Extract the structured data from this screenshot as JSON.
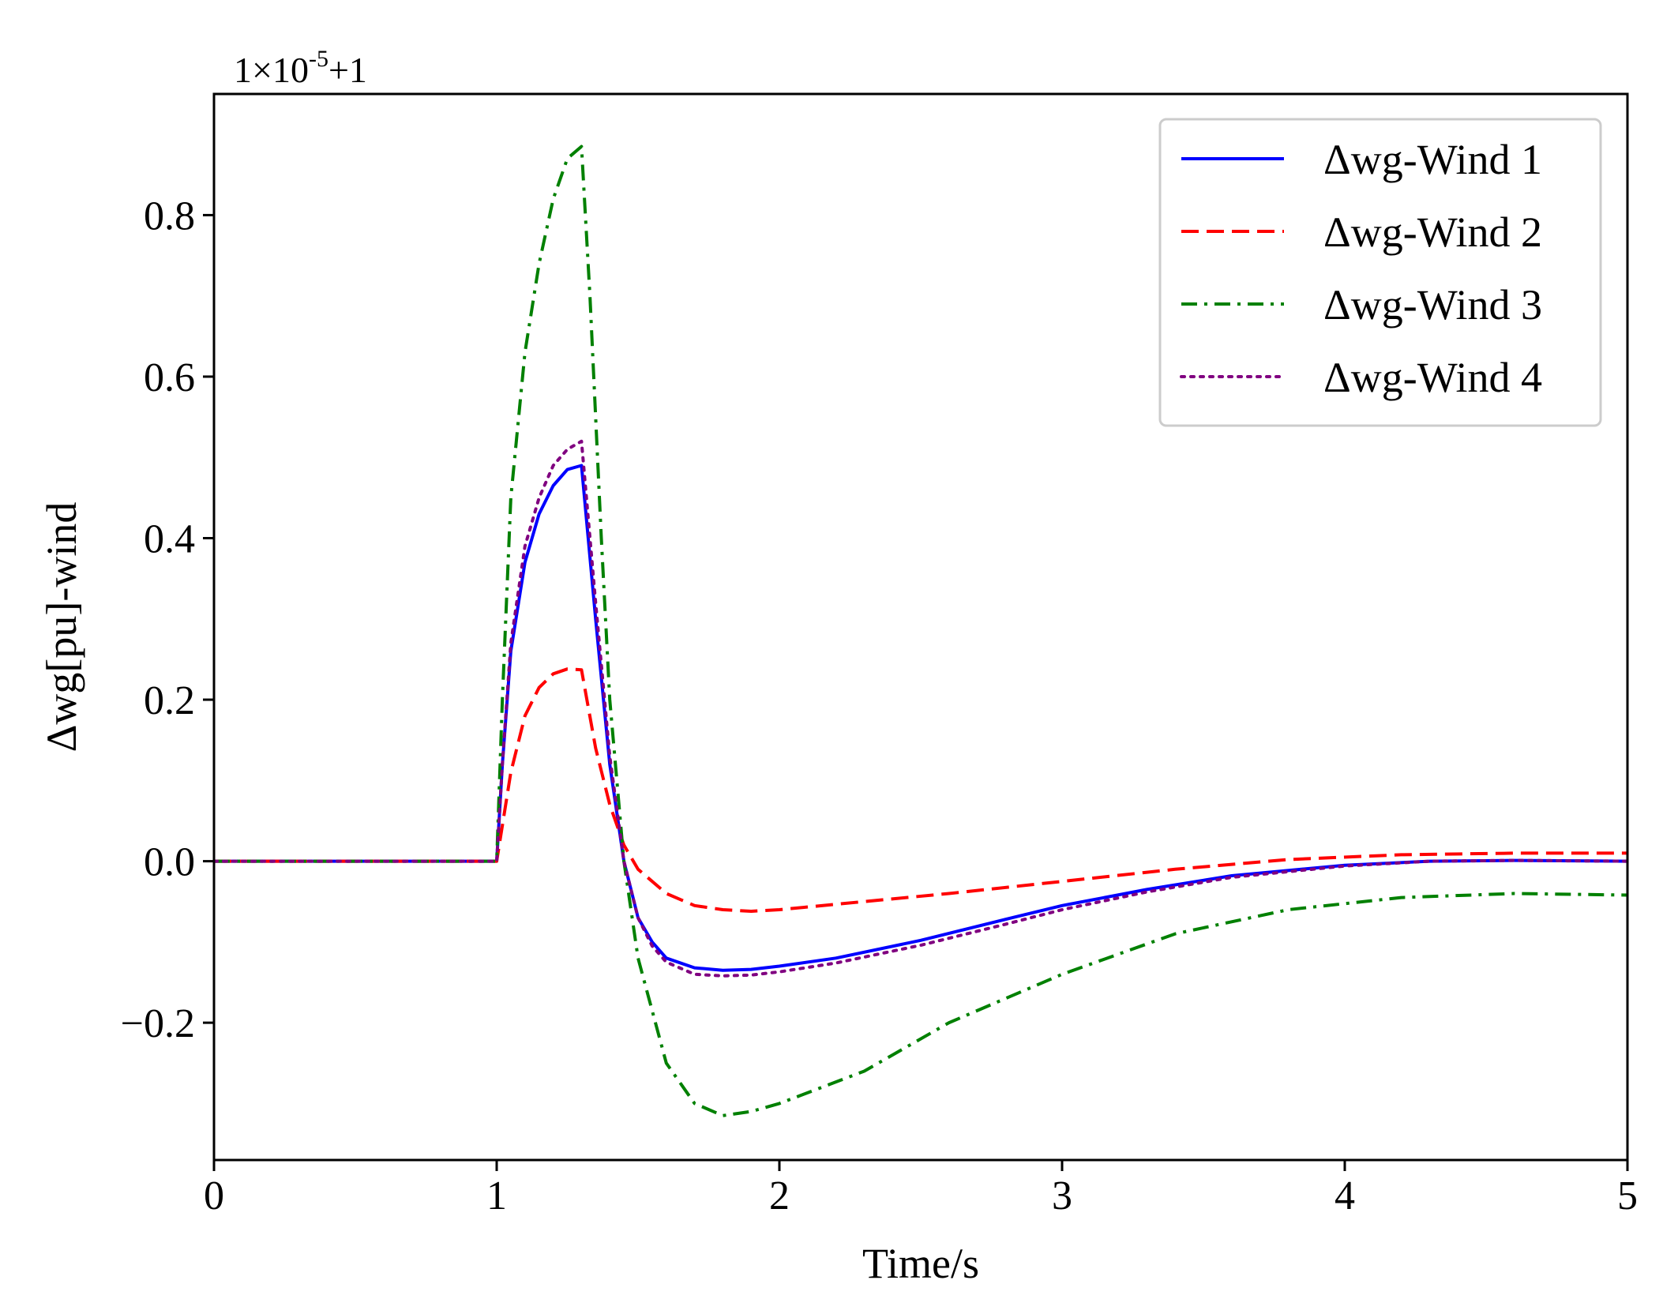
{
  "chart_data": {
    "type": "line",
    "xlabel": "Time/s",
    "ylabel": "Δwg[pu]-wind",
    "offset_text": {
      "base": "1×10",
      "exponent": "-5",
      "suffix": "+1"
    },
    "xlim": [
      0,
      5
    ],
    "ylim": [
      -0.37,
      0.95
    ],
    "x_ticks": [
      0,
      1,
      2,
      3,
      4,
      5
    ],
    "x_tick_labels": [
      "0",
      "1",
      "2",
      "3",
      "4",
      "5"
    ],
    "y_ticks": [
      -0.2,
      0.0,
      0.2,
      0.4,
      0.6,
      0.8
    ],
    "y_tick_labels": [
      "−0.2",
      "0.0",
      "0.2",
      "0.4",
      "0.6",
      "0.8"
    ],
    "grid": false,
    "legend_position": "top-right",
    "series": [
      {
        "name": "Δwg-Wind 1",
        "color": "#0000ff",
        "style": "solid",
        "x": [
          0,
          1.0,
          1.02,
          1.05,
          1.1,
          1.15,
          1.2,
          1.25,
          1.3,
          1.35,
          1.4,
          1.45,
          1.5,
          1.55,
          1.6,
          1.7,
          1.8,
          1.9,
          2.0,
          2.2,
          2.5,
          2.8,
          3.0,
          3.3,
          3.6,
          4.0,
          4.3,
          4.6,
          5.0
        ],
        "values": [
          0,
          0,
          0.12,
          0.26,
          0.37,
          0.43,
          0.465,
          0.485,
          0.49,
          0.3,
          0.12,
          0.0,
          -0.07,
          -0.1,
          -0.12,
          -0.132,
          -0.135,
          -0.134,
          -0.13,
          -0.12,
          -0.098,
          -0.072,
          -0.055,
          -0.035,
          -0.018,
          -0.005,
          0.0,
          0.001,
          0.0
        ]
      },
      {
        "name": "Δwg-Wind 2",
        "color": "#ff0000",
        "style": "dashed",
        "x": [
          0,
          1.0,
          1.05,
          1.1,
          1.15,
          1.2,
          1.25,
          1.3,
          1.35,
          1.4,
          1.45,
          1.5,
          1.6,
          1.7,
          1.8,
          1.9,
          2.0,
          2.3,
          2.6,
          3.0,
          3.4,
          3.8,
          4.2,
          4.6,
          5.0
        ],
        "values": [
          0,
          0,
          0.11,
          0.18,
          0.215,
          0.232,
          0.238,
          0.237,
          0.14,
          0.07,
          0.02,
          -0.01,
          -0.04,
          -0.055,
          -0.06,
          -0.062,
          -0.06,
          -0.05,
          -0.04,
          -0.025,
          -0.01,
          0.002,
          0.008,
          0.01,
          0.01
        ]
      },
      {
        "name": "Δwg-Wind 3",
        "color": "#008000",
        "style": "dashdot",
        "x": [
          0,
          1.0,
          1.02,
          1.05,
          1.1,
          1.15,
          1.2,
          1.25,
          1.3,
          1.33,
          1.37,
          1.4,
          1.45,
          1.5,
          1.6,
          1.7,
          1.8,
          1.9,
          2.0,
          2.3,
          2.6,
          3.0,
          3.4,
          3.8,
          4.2,
          4.6,
          5.0
        ],
        "values": [
          0,
          0,
          0.2,
          0.45,
          0.63,
          0.74,
          0.82,
          0.87,
          0.885,
          0.7,
          0.4,
          0.2,
          0.0,
          -0.12,
          -0.25,
          -0.3,
          -0.315,
          -0.31,
          -0.3,
          -0.26,
          -0.2,
          -0.14,
          -0.09,
          -0.06,
          -0.045,
          -0.04,
          -0.042
        ]
      },
      {
        "name": "Δwg-Wind 4",
        "color": "#800080",
        "style": "dotted",
        "x": [
          0,
          1.0,
          1.02,
          1.05,
          1.1,
          1.15,
          1.2,
          1.25,
          1.3,
          1.35,
          1.4,
          1.45,
          1.5,
          1.55,
          1.6,
          1.7,
          1.8,
          1.9,
          2.0,
          2.2,
          2.5,
          2.8,
          3.0,
          3.3,
          3.6,
          4.0,
          4.3,
          4.6,
          5.0
        ],
        "values": [
          0,
          0,
          0.12,
          0.27,
          0.39,
          0.45,
          0.49,
          0.51,
          0.52,
          0.32,
          0.13,
          0.0,
          -0.07,
          -0.105,
          -0.125,
          -0.14,
          -0.142,
          -0.141,
          -0.137,
          -0.126,
          -0.104,
          -0.078,
          -0.06,
          -0.038,
          -0.02,
          -0.006,
          0.0,
          0.001,
          0.0
        ]
      }
    ]
  }
}
